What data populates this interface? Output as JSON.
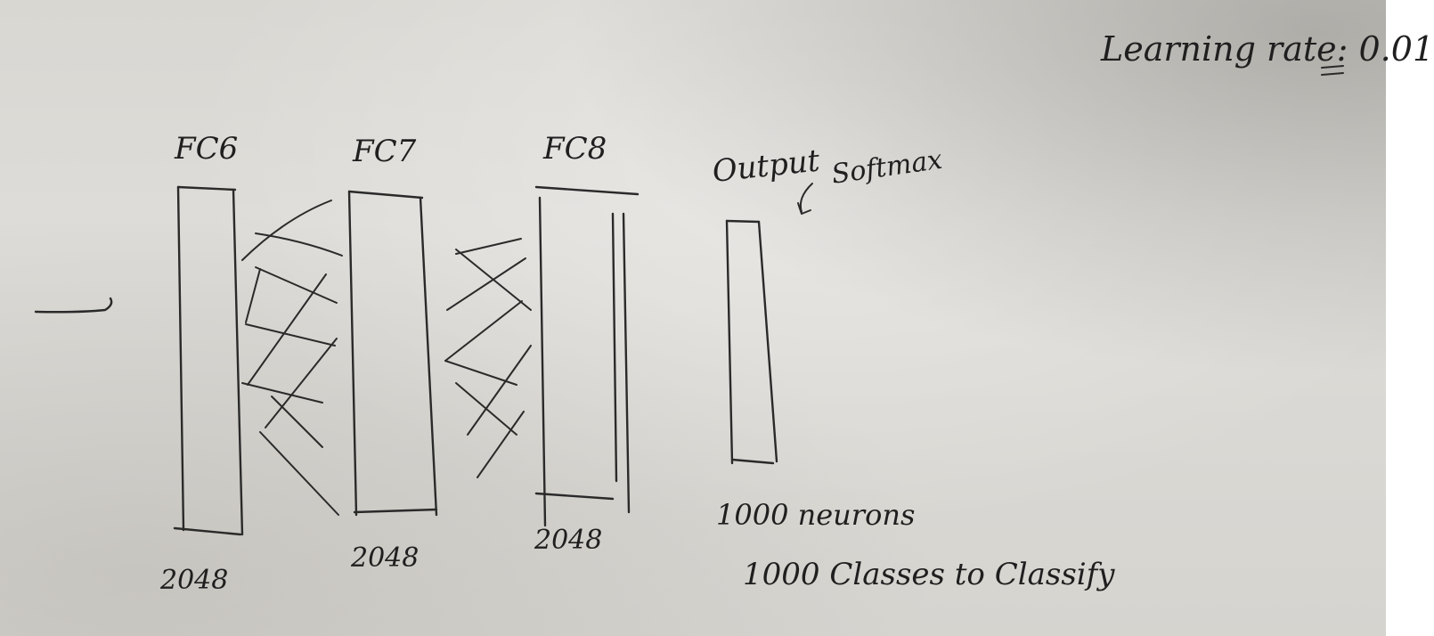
{
  "note": {
    "learning_rate": "Learning rate: 0.01"
  },
  "layers": [
    {
      "name": "FC6",
      "neurons": "2048"
    },
    {
      "name": "FC7",
      "neurons": "2048"
    },
    {
      "name": "FC8",
      "neurons": "2048"
    }
  ],
  "output": {
    "label": "Output",
    "activation": "Softmax",
    "neurons": "1000 neurons",
    "classes": "1000 Classes to Classify"
  }
}
